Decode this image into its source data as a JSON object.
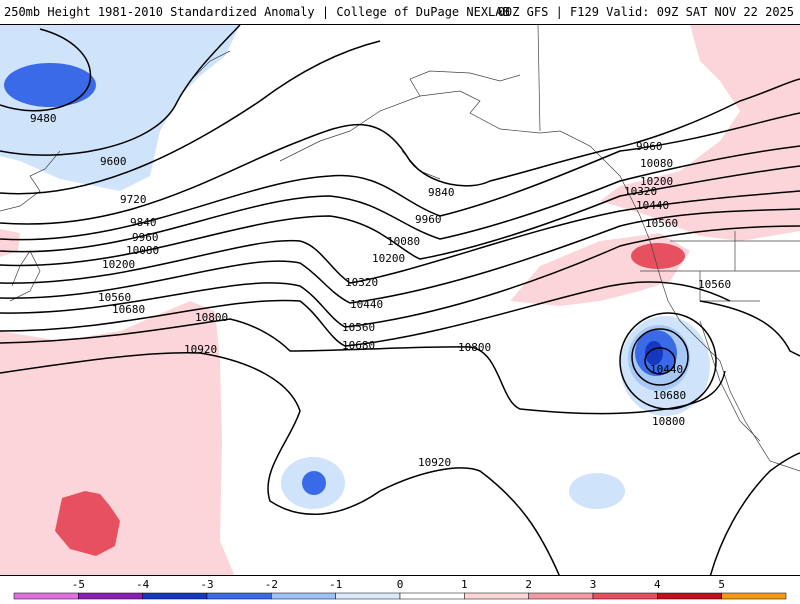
{
  "header": {
    "left_title": "250mb Height 1981-2010 Standardized Anomaly | College of DuPage NEXLAB",
    "right_title": "00Z GFS | F129 Valid: 09Z SAT NOV 22 2025"
  },
  "contours": {
    "labels": [
      "9480",
      "9600",
      "9720",
      "9840",
      "9960",
      "10080",
      "10200",
      "10320",
      "10440",
      "10560",
      "10680",
      "10800",
      "10920"
    ],
    "low_center_label": "10440"
  },
  "colorbar": {
    "ticks": [
      "-5",
      "-4",
      "-3",
      "-2",
      "-1",
      "0",
      "1",
      "2",
      "3",
      "4",
      "5"
    ],
    "colors": [
      "#e070e0",
      "#8a1fb4",
      "#1538c0",
      "#3a6ae8",
      "#9ec2f5",
      "#dbe9fc",
      "#ffffff",
      "#fcd5d9",
      "#f29aa4",
      "#e7505e",
      "#c01020",
      "#f59a16"
    ]
  },
  "colors": {
    "neg_light": "#cfe3fb",
    "neg_mid": "#a8c9f5",
    "neg_strong": "#3a6ae8",
    "neg_deep": "#1538c0",
    "pos_light": "#fbd5d9",
    "pos_mid": "#f19aa4",
    "pos_strong": "#e7505e"
  }
}
